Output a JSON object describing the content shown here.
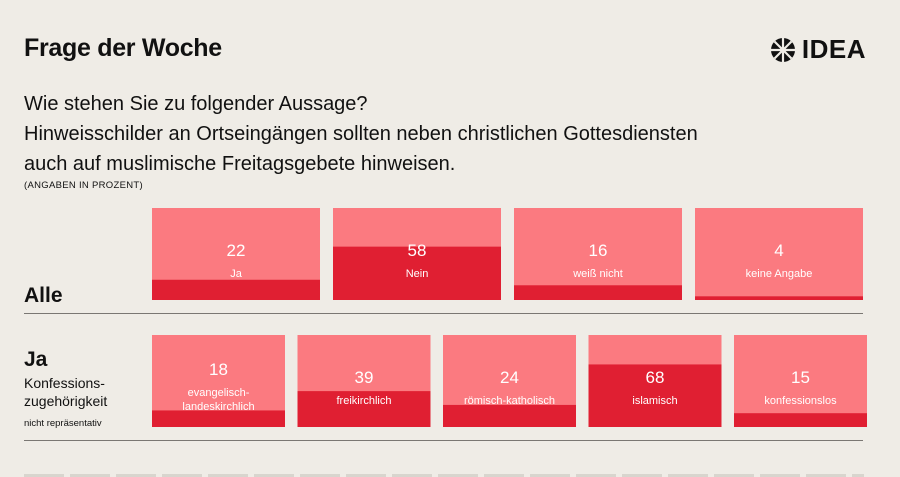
{
  "header": {
    "title": "Frage der Woche"
  },
  "logo": {
    "text": "IDEA"
  },
  "question": {
    "lines": [
      "Wie stehen Sie zu folgender Aussage?",
      "Hinweisschilder an Ortseingängen sollten neben christlichen Gottesdiensten",
      "auch auf muslimische Freitagsgebete hinweisen."
    ]
  },
  "units_note": "(ANGABEN IN PROZENT)",
  "rows": {
    "alle_label": "Alle",
    "ja_label": "Ja",
    "ja_sub_lines": [
      "Konfessions-",
      "zugehörigkeit"
    ],
    "ja_note": "nicht repräsentativ"
  },
  "colors": {
    "background": "#efece6",
    "box_light": "#fb7a80",
    "box_dark": "#e01f32",
    "text_on_box": "#ffffff"
  },
  "chart_data": [
    {
      "type": "bar",
      "row": "Alle",
      "categories": [
        "Ja",
        "Nein",
        "weiß nicht",
        "keine Angabe"
      ],
      "values": [
        22,
        58,
        16,
        4
      ],
      "ylim": [
        0,
        100
      ]
    },
    {
      "type": "bar",
      "row": "Ja",
      "categories": [
        "evangelisch-landeskirchlich",
        "freikirchlich",
        "römisch-katholisch",
        "islamisch",
        "konfessionslos"
      ],
      "display_labels": [
        [
          "evangelisch-",
          "landeskirchlich"
        ],
        [
          "freikirchlich"
        ],
        [
          "römisch-katholisch"
        ],
        [
          "islamisch"
        ],
        [
          "konfessionslos"
        ]
      ],
      "values": [
        18,
        39,
        24,
        68,
        15
      ],
      "ylim": [
        0,
        100
      ]
    }
  ]
}
